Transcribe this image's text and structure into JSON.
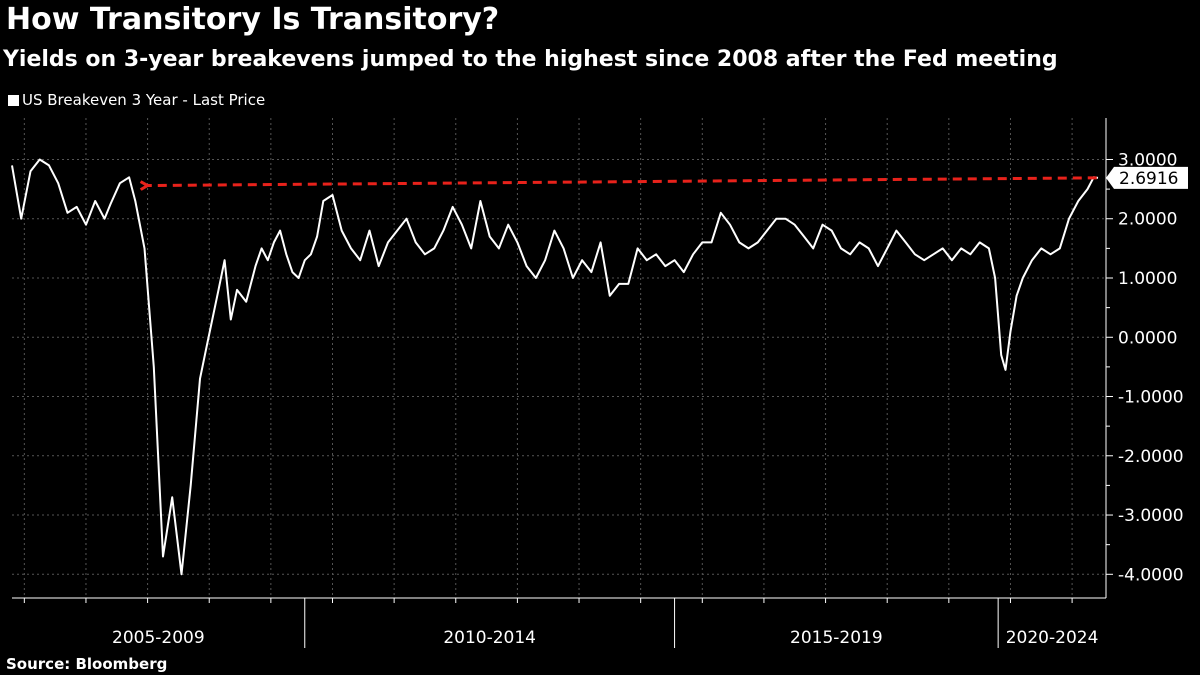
{
  "title": "How Transitory Is Transitory?",
  "subtitle": "Yields on 3-year breakevens jumped to the highest since 2008 after the Fed meeting",
  "source": "Source: Bloomberg",
  "colors": {
    "background": "#000000",
    "line": "#ffffff",
    "annotation": "#e8221b",
    "grid": "#555555"
  },
  "chart_data": {
    "type": "line",
    "legend": "US Breakeven 3 Year - Last Price",
    "legend_position": "top-left",
    "y_ticks": [
      {
        "value": 3,
        "label": "3.0000"
      },
      {
        "value": 2,
        "label": "2.0000"
      },
      {
        "value": 1,
        "label": "1.0000"
      },
      {
        "value": 0,
        "label": "0.0000"
      },
      {
        "value": -1,
        "label": "-1.0000"
      },
      {
        "value": -2,
        "label": "-2.0000"
      },
      {
        "value": -3,
        "label": "-3.0000"
      },
      {
        "value": -4,
        "label": "-4.0000"
      }
    ],
    "ylim": [
      -4.4,
      3.7
    ],
    "xlim": [
      2004.0,
      2021.75
    ],
    "x_groups": [
      {
        "label": "2005-2009",
        "start": 2004.0,
        "end": 2008.75
      },
      {
        "label": "2010-2014",
        "start": 2008.75,
        "end": 2014.75
      },
      {
        "label": "2015-2019",
        "start": 2014.75,
        "end": 2020.0
      },
      {
        "label": "2020-2024",
        "start": 2020.0,
        "end": 2021.75
      }
    ],
    "year_ticks": [
      2004.2,
      2005.2,
      2006.2,
      2007.2,
      2008.2,
      2009.2,
      2010.2,
      2011.2,
      2012.2,
      2013.2,
      2014.2,
      2015.2,
      2016.2,
      2017.2,
      2018.2,
      2019.2,
      2020.2,
      2021.2
    ],
    "grid": true,
    "last_value": "2.6916",
    "annotation": {
      "type": "dashed-arrow",
      "from": [
        2021.6,
        2.69
      ],
      "to": [
        2006.2,
        2.56
      ]
    },
    "series": [
      {
        "x": [
          2004.0,
          2004.15,
          2004.3,
          2004.45,
          2004.6,
          2004.75,
          2004.9,
          2005.05,
          2005.2,
          2005.35,
          2005.5,
          2005.6,
          2005.75,
          2005.9,
          2006.0,
          2006.15,
          2006.3,
          2006.45,
          2006.6,
          2006.75,
          2006.9,
          2007.05,
          2007.15,
          2007.25,
          2007.35,
          2007.45,
          2007.55,
          2007.65,
          2007.8,
          2007.95,
          2008.05,
          2008.15,
          2008.25,
          2008.35,
          2008.45,
          2008.55,
          2008.65,
          2008.75,
          2008.85,
          2008.95,
          2009.05,
          2009.2,
          2009.35,
          2009.5,
          2009.65,
          2009.8,
          2009.95,
          2010.1,
          2010.25,
          2010.4,
          2010.55,
          2010.7,
          2010.85,
          2011.0,
          2011.15,
          2011.3,
          2011.45,
          2011.6,
          2011.75,
          2011.9,
          2012.05,
          2012.2,
          2012.35,
          2012.5,
          2012.65,
          2012.8,
          2012.95,
          2013.1,
          2013.25,
          2013.4,
          2013.55,
          2013.7,
          2013.85,
          2014.0,
          2014.15,
          2014.3,
          2014.45,
          2014.6,
          2014.75,
          2014.9,
          2015.05,
          2015.2,
          2015.35,
          2015.5,
          2015.65,
          2015.8,
          2015.95,
          2016.1,
          2016.25,
          2016.4,
          2016.55,
          2016.7,
          2016.85,
          2017.0,
          2017.15,
          2017.3,
          2017.45,
          2017.6,
          2017.75,
          2017.9,
          2018.05,
          2018.2,
          2018.35,
          2018.5,
          2018.65,
          2018.8,
          2018.95,
          2019.1,
          2019.25,
          2019.4,
          2019.55,
          2019.7,
          2019.85,
          2019.95,
          2020.05,
          2020.12,
          2020.2,
          2020.3,
          2020.4,
          2020.55,
          2020.7,
          2020.85,
          2021.0,
          2021.15,
          2021.3,
          2021.45,
          2021.55,
          2021.62
        ],
        "y": [
          2.9,
          2.0,
          2.8,
          3.0,
          2.9,
          2.6,
          2.1,
          2.2,
          1.9,
          2.3,
          2.0,
          2.25,
          2.6,
          2.7,
          2.3,
          1.5,
          -0.5,
          -3.7,
          -2.7,
          -4.0,
          -2.5,
          -0.7,
          -0.2,
          0.3,
          0.8,
          1.3,
          0.3,
          0.8,
          0.6,
          1.2,
          1.5,
          1.3,
          1.6,
          1.8,
          1.4,
          1.1,
          1.0,
          1.3,
          1.4,
          1.7,
          2.3,
          2.4,
          1.8,
          1.5,
          1.3,
          1.8,
          1.2,
          1.6,
          1.8,
          2.0,
          1.6,
          1.4,
          1.5,
          1.8,
          2.2,
          1.9,
          1.5,
          2.3,
          1.7,
          1.5,
          1.9,
          1.6,
          1.2,
          1.0,
          1.3,
          1.8,
          1.5,
          1.0,
          1.3,
          1.1,
          1.6,
          0.7,
          0.9,
          0.9,
          1.5,
          1.3,
          1.4,
          1.2,
          1.3,
          1.1,
          1.4,
          1.6,
          1.6,
          2.1,
          1.9,
          1.6,
          1.5,
          1.6,
          1.8,
          2.0,
          2.0,
          1.9,
          1.7,
          1.5,
          1.9,
          1.8,
          1.5,
          1.4,
          1.6,
          1.5,
          1.2,
          1.5,
          1.8,
          1.6,
          1.4,
          1.3,
          1.4,
          1.5,
          1.3,
          1.5,
          1.4,
          1.6,
          1.5,
          1.0,
          -0.3,
          -0.55,
          0.1,
          0.7,
          1.0,
          1.3,
          1.5,
          1.4,
          1.5,
          2.0,
          2.3,
          2.5,
          2.7,
          2.69
        ]
      }
    ]
  }
}
